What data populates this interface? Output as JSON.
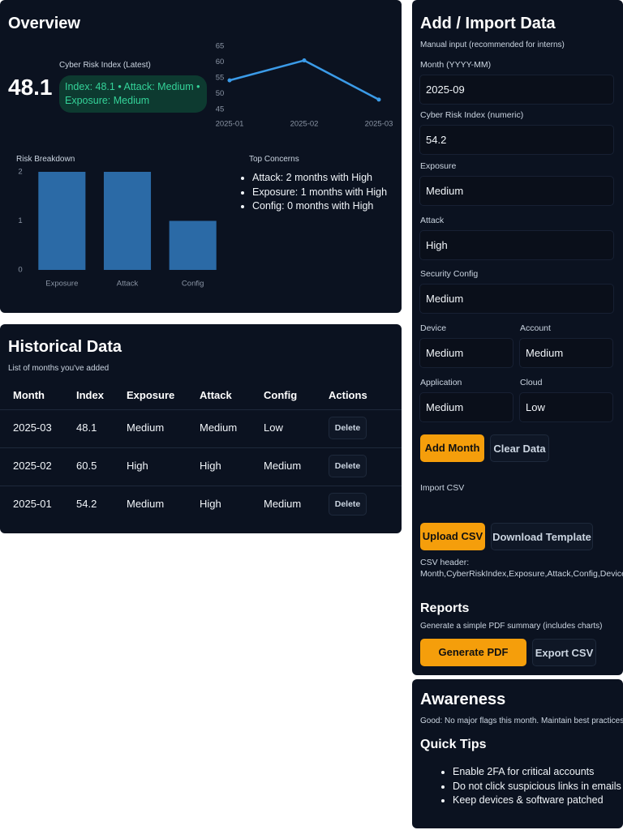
{
  "chart_data": [
    {
      "type": "line",
      "x": [
        "2025-01",
        "2025-02",
        "2025-03"
      ],
      "values": [
        54.2,
        60.5,
        48.1
      ],
      "ylim": [
        45,
        65
      ],
      "yticks": [
        45,
        50,
        55,
        60,
        65
      ],
      "color": "#3b9be8"
    },
    {
      "type": "bar",
      "title": "Risk Breakdown",
      "categories": [
        "Exposure",
        "Attack",
        "Config"
      ],
      "values": [
        2,
        2,
        1
      ],
      "ylim": [
        0,
        2
      ],
      "yticks": [
        0,
        1,
        2
      ],
      "color": "#2b6aa6"
    }
  ],
  "overview": {
    "title": "Overview",
    "index_label": "Cyber Risk Index (Latest)",
    "index_value": 48.1,
    "badge": "Index: 48.1 • Attack: Medium • Exposure: Medium",
    "concerns": {
      "title": "Top Concerns",
      "items": [
        "Attack: 2 months with High",
        "Exposure: 1 months with High",
        "Config: 0 months with High"
      ]
    }
  },
  "history": {
    "title": "Historical Data",
    "subtitle": "List of months you've added",
    "columns": [
      "Month",
      "Index",
      "Exposure",
      "Attack",
      "Config",
      "Actions"
    ],
    "rows": [
      [
        "2025-03",
        48.1,
        "Medium",
        "Medium",
        "Low",
        "Delete"
      ],
      [
        "2025-02",
        60.5,
        "High",
        "High",
        "Medium",
        "Delete"
      ],
      [
        "2025-01",
        54.2,
        "Medium",
        "High",
        "Medium",
        "Delete"
      ]
    ]
  },
  "form": {
    "title": "Add / Import Data",
    "subtitle": "Manual input (recommended for interns)",
    "fields": [
      {
        "label": "Month (YYYY-MM)",
        "value": "2025-09"
      },
      {
        "label": "Cyber Risk Index (numeric)",
        "value": 54.2
      },
      {
        "label": "Exposure",
        "value": "Medium"
      },
      {
        "label": "Attack",
        "value": "High"
      },
      {
        "label": "Security Config",
        "value": "Medium"
      },
      {
        "label": "Device",
        "value": "Medium"
      },
      {
        "label": "Account",
        "value": "Medium"
      },
      {
        "label": "Application",
        "value": "Medium"
      },
      {
        "label": "Cloud",
        "value": "Low"
      }
    ],
    "add_button": "Add Month",
    "clear_button": "Clear Data",
    "import_label": "Import CSV",
    "upload_button": "Upload CSV",
    "template_button": "Download Template",
    "csv_header_label": "CSV header:",
    "csv_header": "Month,CyberRiskIndex,Exposure,Attack,Config,Device,Account",
    "reports_title": "Reports",
    "reports_subtitle": "Generate a simple PDF summary (includes charts)",
    "pdf_button": "Generate PDF Report",
    "export_button": "Export CSV"
  },
  "awareness": {
    "title": "Awareness",
    "message": "Good: No major flags this month. Maintain best practices.",
    "tips_title": "Quick Tips",
    "tips": [
      "Enable 2FA for critical accounts",
      "Do not click suspicious links in emails",
      "Keep devices & software patched"
    ]
  }
}
